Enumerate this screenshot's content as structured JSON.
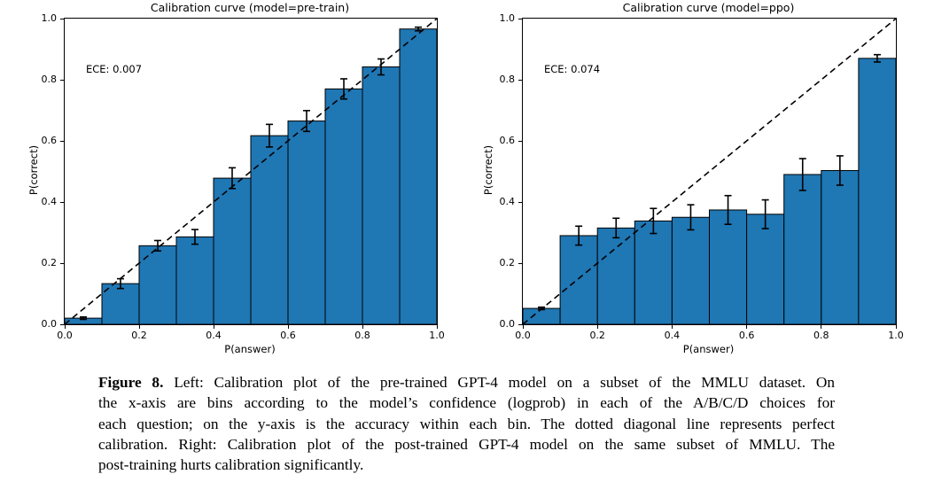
{
  "colors": {
    "bar_fill": "#1f77b4",
    "bar_edge": "#000000",
    "diagonal_line": "#000000",
    "error_bar": "#000000",
    "axis": "#000000",
    "background": "#ffffff"
  },
  "chart_data": [
    {
      "type": "bar",
      "title": "Calibration curve (model=pre-train)",
      "annotation": "ECE: 0.007",
      "xlabel": "P(answer)",
      "ylabel": "P(correct)",
      "xlim": [
        0.0,
        1.0
      ],
      "ylim": [
        0.0,
        1.0
      ],
      "x_ticks": [
        "0.0",
        "0.2",
        "0.4",
        "0.6",
        "0.8",
        "1.0"
      ],
      "y_ticks": [
        "0.0",
        "0.2",
        "0.4",
        "0.6",
        "0.8",
        "1.0"
      ],
      "bins": [
        0.0,
        0.1,
        0.2,
        0.3,
        0.4,
        0.5,
        0.6,
        0.7,
        0.8,
        0.9
      ],
      "bin_width": 0.1,
      "values": [
        0.02,
        0.133,
        0.257,
        0.286,
        0.478,
        0.617,
        0.665,
        0.77,
        0.842,
        0.966
      ],
      "errors": [
        0.004,
        0.016,
        0.017,
        0.024,
        0.034,
        0.037,
        0.034,
        0.033,
        0.026,
        0.006
      ],
      "diagonal": true,
      "legend": "none",
      "grid": false
    },
    {
      "type": "bar",
      "title": "Calibration curve (model=ppo)",
      "annotation": "ECE: 0.074",
      "xlabel": "P(answer)",
      "ylabel": "P(correct)",
      "xlim": [
        0.0,
        1.0
      ],
      "ylim": [
        0.0,
        1.0
      ],
      "x_ticks": [
        "0.0",
        "0.2",
        "0.4",
        "0.6",
        "0.8",
        "1.0"
      ],
      "y_ticks": [
        "0.0",
        "0.2",
        "0.4",
        "0.6",
        "0.8",
        "1.0"
      ],
      "bins": [
        0.0,
        0.1,
        0.2,
        0.3,
        0.4,
        0.5,
        0.6,
        0.7,
        0.8,
        0.9
      ],
      "bin_width": 0.1,
      "values": [
        0.052,
        0.29,
        0.315,
        0.338,
        0.35,
        0.374,
        0.36,
        0.49,
        0.503,
        0.87
      ],
      "errors": [
        0.004,
        0.031,
        0.032,
        0.041,
        0.041,
        0.047,
        0.047,
        0.052,
        0.048,
        0.012
      ],
      "diagonal": true,
      "legend": "none",
      "grid": false
    }
  ],
  "caption": {
    "label": "Figure 8.",
    "lines": [
      "Left: Calibration plot of the pre-trained GPT-4 model on a subset of the MMLU dataset. On",
      "the x-axis are bins according to the model’s confidence (logprob) in each of the A/B/C/D choices for",
      "each question; on the y-axis is the accuracy within each bin. The dotted diagonal line represents perfect",
      "calibration. Right: Calibration plot of the post-trained GPT-4 model on the same subset of MMLU. The",
      "post-training hurts calibration significantly."
    ]
  }
}
